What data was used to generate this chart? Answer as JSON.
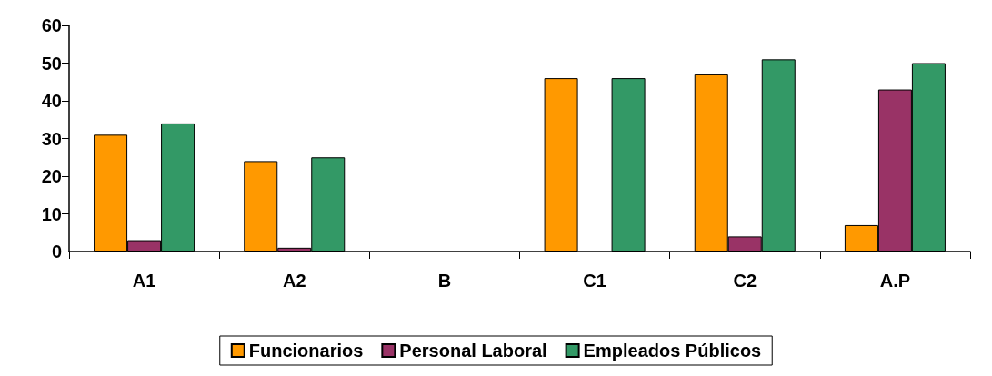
{
  "chart_data": {
    "type": "bar",
    "categories": [
      "A1",
      "A2",
      "B",
      "C1",
      "C2",
      "A.P"
    ],
    "series": [
      {
        "name": "Funcionarios",
        "color": "#ff9900",
        "values": [
          31,
          24,
          null,
          46,
          47,
          7
        ]
      },
      {
        "name": "Personal Laboral",
        "color": "#993366",
        "values": [
          3,
          1,
          null,
          null,
          4,
          43
        ]
      },
      {
        "name": "Empleados Públicos",
        "color": "#339966",
        "values": [
          34,
          25,
          null,
          46,
          51,
          50
        ]
      }
    ],
    "ylim": [
      0,
      60
    ],
    "yticks": [
      0,
      10,
      20,
      30,
      40,
      50,
      60
    ],
    "grid": false,
    "legend": "bottom"
  }
}
